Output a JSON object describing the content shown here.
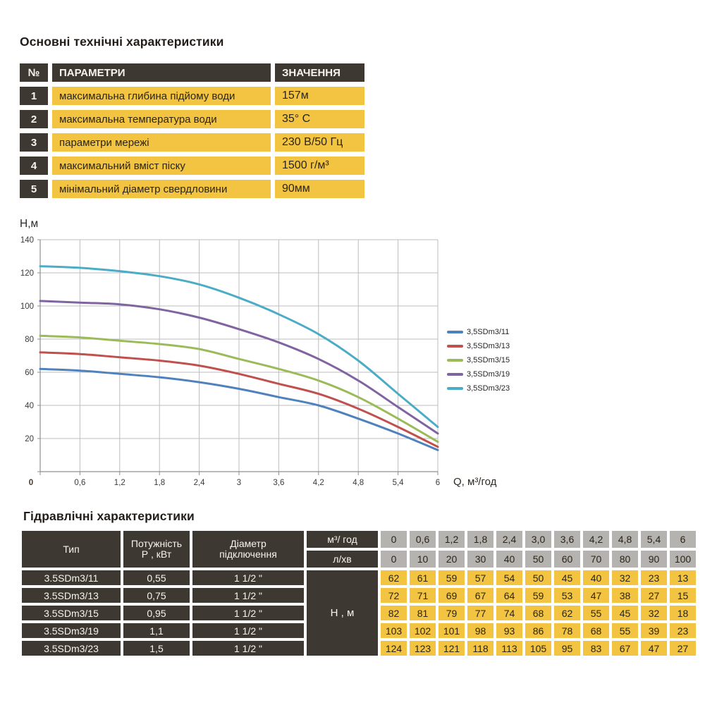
{
  "tech_specs": {
    "title": "Основні технічні характеристики",
    "headers": {
      "num": "№",
      "param": "ПАРАМЕТРИ",
      "value": "ЗНАЧЕННЯ"
    },
    "rows": [
      {
        "num": "1",
        "param": "максимальна глибина підйому води",
        "value": "157м"
      },
      {
        "num": "2",
        "param": "максимальна температура води",
        "value": "35° С"
      },
      {
        "num": "3",
        "param": "параметри мережі",
        "value": "230 В/50 Гц"
      },
      {
        "num": "4",
        "param": "максимальний вміст піску",
        "value": "1500 г/м³"
      },
      {
        "num": "5",
        "param": "мінімальний діаметр свердловини",
        "value": "90мм"
      }
    ]
  },
  "chart_data": {
    "type": "line",
    "title": "",
    "ylabel": "Н,м",
    "xlabel": "Q, м³/год",
    "x": [
      0,
      0.6,
      1.2,
      1.8,
      2.4,
      3,
      3.6,
      4.2,
      4.8,
      5.4,
      6
    ],
    "x_tick_labels": [
      "0",
      "0,6",
      "1,2",
      "1,8",
      "2,4",
      "3",
      "3,6",
      "4,2",
      "4,8",
      "5,4",
      "6"
    ],
    "y_ticks": [
      0,
      20,
      40,
      60,
      80,
      100,
      120,
      140
    ],
    "ylim": [
      0,
      140
    ],
    "xlim": [
      0,
      6
    ],
    "grid": true,
    "legend_position": "right",
    "series": [
      {
        "name": "3,5SDm3/11",
        "color": "#4F81BD",
        "values": [
          62,
          61,
          59,
          57,
          54,
          50,
          45,
          40,
          32,
          23,
          13
        ]
      },
      {
        "name": "3,5SDm3/13",
        "color": "#C0504D",
        "values": [
          72,
          71,
          69,
          67,
          64,
          59,
          53,
          47,
          38,
          27,
          15
        ]
      },
      {
        "name": "3,5SDm3/15",
        "color": "#9BBB59",
        "values": [
          82,
          81,
          79,
          77,
          74,
          68,
          62,
          55,
          45,
          32,
          18
        ]
      },
      {
        "name": "3,5SDm3/19",
        "color": "#8064A2",
        "values": [
          103,
          102,
          101,
          98,
          93,
          86,
          78,
          68,
          55,
          39,
          23
        ]
      },
      {
        "name": "3,5SDm3/23",
        "color": "#4BACC6",
        "values": [
          124,
          123,
          121,
          118,
          113,
          105,
          95,
          83,
          67,
          47,
          27
        ]
      }
    ]
  },
  "hydraulics": {
    "title": "Гідравлічні характеристики",
    "headers": {
      "type": "Тип",
      "power_line1": "Потужність",
      "power_line2": "Р , кВт",
      "diameter_line1": "Діаметр",
      "diameter_line2": "підключення",
      "flow_m3": "м³/ год",
      "flow_lmin": "л/хв",
      "head": "Н , м"
    },
    "flow_m3_values": [
      "0",
      "0,6",
      "1,2",
      "1,8",
      "2,4",
      "3,0",
      "3,6",
      "4,2",
      "4,8",
      "5,4",
      "6"
    ],
    "flow_lmin_values": [
      "0",
      "10",
      "20",
      "30",
      "40",
      "50",
      "60",
      "70",
      "80",
      "90",
      "100"
    ],
    "rows": [
      {
        "type": "3.5SDm3/11",
        "power": "0,55",
        "diameter": "1 1/2 \"",
        "head_values": [
          "62",
          "61",
          "59",
          "57",
          "54",
          "50",
          "45",
          "40",
          "32",
          "23",
          "13"
        ]
      },
      {
        "type": "3.5SDm3/13",
        "power": "0,75",
        "diameter": "1 1/2 \"",
        "head_values": [
          "72",
          "71",
          "69",
          "67",
          "64",
          "59",
          "53",
          "47",
          "38",
          "27",
          "15"
        ]
      },
      {
        "type": "3.5SDm3/15",
        "power": "0,95",
        "diameter": "1 1/2 \"",
        "head_values": [
          "82",
          "81",
          "79",
          "77",
          "74",
          "68",
          "62",
          "55",
          "45",
          "32",
          "18"
        ]
      },
      {
        "type": "3.5SDm3/19",
        "power": "1,1",
        "diameter": "1 1/2 \"",
        "head_values": [
          "103",
          "102",
          "101",
          "98",
          "93",
          "86",
          "78",
          "68",
          "55",
          "39",
          "23"
        ]
      },
      {
        "type": "3.5SDm3/23",
        "power": "1,5",
        "diameter": "1 1/2 \"",
        "head_values": [
          "124",
          "123",
          "121",
          "118",
          "113",
          "105",
          "95",
          "83",
          "67",
          "47",
          "27"
        ]
      }
    ]
  },
  "colors": {
    "dark_cell": "#3e3832",
    "yellow_cell": "#f2c441",
    "gray_cell": "#b5b3b0",
    "grid_line": "#bdbdbd",
    "axis_line": "#8f8f8f",
    "tick_text": "#3a3a3a"
  }
}
